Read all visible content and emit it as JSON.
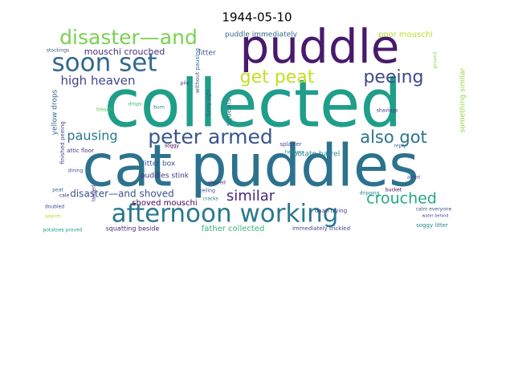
{
  "chart_data": {
    "type": "wordcloud",
    "title": "1944-05-10",
    "words": [
      {
        "text": "collected",
        "color": "#1f9e89"
      },
      {
        "text": "cat puddles",
        "color": "#2c728e"
      },
      {
        "text": "puddle",
        "color": "#481a6c"
      },
      {
        "text": "afternoon working",
        "color": "#2a788e"
      },
      {
        "text": "soon set",
        "color": "#31688e"
      },
      {
        "text": "disaster—and",
        "color": "#7ad151"
      },
      {
        "text": "peter armed",
        "color": "#39568c"
      },
      {
        "text": "get peat",
        "color": "#c2df23"
      },
      {
        "text": "peeing",
        "color": "#3e4a89"
      },
      {
        "text": "high heaven",
        "color": "#414487"
      },
      {
        "text": "also got",
        "color": "#2c728e"
      },
      {
        "text": "crouched",
        "color": "#22a884"
      },
      {
        "text": "similar",
        "color": "#482878"
      },
      {
        "text": "pausing",
        "color": "#2a788e"
      },
      {
        "text": "disaster—and shoved",
        "color": "#3b528b"
      },
      {
        "text": "mouschi crouched",
        "color": "#472d7b"
      },
      {
        "text": "puddle immediately",
        "color": "#31688e"
      },
      {
        "text": "poor mouschi",
        "color": "#b8de29"
      },
      {
        "text": "potato barrel",
        "color": "#26828e"
      },
      {
        "text": "litter box",
        "color": "#3b528b"
      },
      {
        "text": "puddles stink",
        "color": "#46337e"
      },
      {
        "text": "shoved mouschi",
        "color": "#440154"
      },
      {
        "text": "father collected",
        "color": "#35b779"
      },
      {
        "text": "squatting beside",
        "color": "#482878"
      },
      {
        "text": "immediately trickled",
        "color": "#3e4a89"
      },
      {
        "text": "soggy litter",
        "color": "#26828e"
      },
      {
        "text": "calm everyone",
        "color": "#3b528b"
      },
      {
        "text": "yellow drops",
        "color": "#31688e"
      },
      {
        "text": "finished peeing",
        "color": "#3e4a89"
      },
      {
        "text": "attic floor",
        "color": "#46337e"
      },
      {
        "text": "litter",
        "color": "#3b528b"
      },
      {
        "text": "without pausing",
        "color": "#31688e"
      },
      {
        "text": "squeals",
        "color": "#2c728e"
      },
      {
        "text": "something similar",
        "color": "#8fd744"
      },
      {
        "text": "daan trying",
        "color": "#443983"
      },
      {
        "text": "splatter",
        "color": "#3e4a89"
      },
      {
        "text": "heaven",
        "color": "#21918c"
      },
      {
        "text": "bleach",
        "color": "#5ec962"
      },
      {
        "text": "drops",
        "color": "#35b779"
      },
      {
        "text": "dining",
        "color": "#3b528b"
      },
      {
        "text": "bucket",
        "color": "#440154"
      },
      {
        "text": "dripping",
        "color": "#26828e"
      },
      {
        "text": "water behind",
        "color": "#3e4a89"
      },
      {
        "text": "potatoes proved",
        "color": "#1f9e89"
      },
      {
        "text": "peat",
        "color": "#31688e"
      },
      {
        "text": "cale",
        "color": "#482878"
      },
      {
        "text": "doubled",
        "color": "#3e4a89"
      },
      {
        "text": "search",
        "color": "#b8de29"
      },
      {
        "text": "stockings",
        "color": "#39568c"
      },
      {
        "text": "shoved",
        "color": "#46337e"
      },
      {
        "text": "ceiling",
        "color": "#3b528b"
      },
      {
        "text": "cracks",
        "color": "#2a788e"
      },
      {
        "text": "landed",
        "color": "#482878"
      },
      {
        "text": "soggy",
        "color": "#440154"
      },
      {
        "text": "burn",
        "color": "#2a788e"
      },
      {
        "text": "pile",
        "color": "#46337e"
      },
      {
        "text": "funny sight",
        "color": "#3b528b"
      },
      {
        "text": "reply",
        "color": "#2c728e"
      },
      {
        "text": "shavings",
        "color": "#46337e"
      },
      {
        "text": "armed",
        "color": "#443983"
      },
      {
        "text": "proved",
        "color": "#8fd744"
      }
    ]
  }
}
